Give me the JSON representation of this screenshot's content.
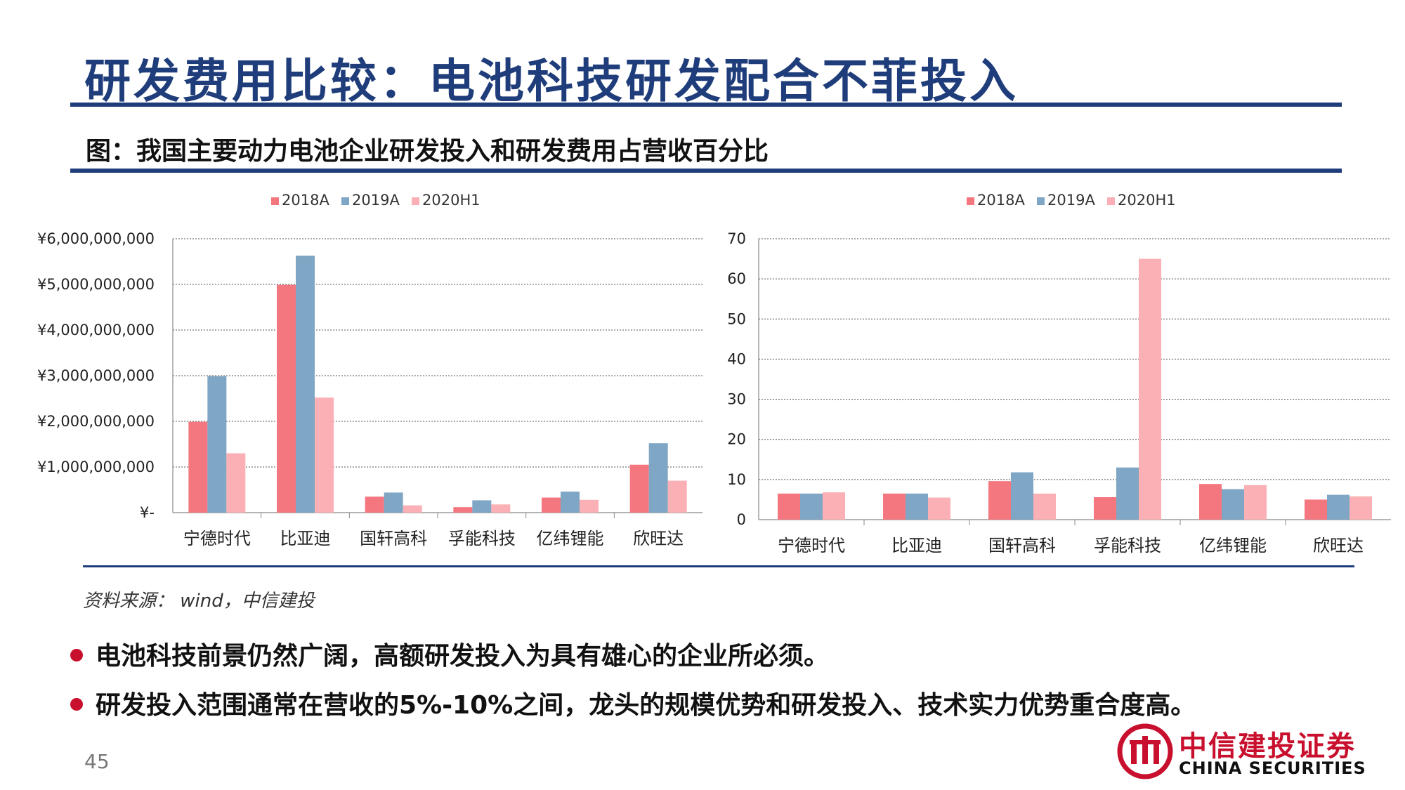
{
  "title": "研发费用比较：电池科技研发配合不菲投入",
  "figure_caption": "图：我国主要动力电池企业研发投入和研发费用占营收百分比",
  "source": "资料来源： wind，中信建投",
  "bullets": [
    "电池科技前景仍然广阔，高额研发投入为具有雄心的企业所必须。",
    "研发投入范围通常在营收的5%-10%之间，龙头的规模优势和研发投入、技术实力优势重合度高。"
  ],
  "page_number": "45",
  "logo": {
    "cn": "中信建投证券",
    "en": "CHINA SECURITIES"
  },
  "colors": {
    "s2018": "#f4777f",
    "s2019": "#7fa6c4",
    "s2020": "#fab0b4",
    "title": "#1f3d7a",
    "brand": "#c8102e"
  },
  "chart_data": [
    {
      "type": "bar",
      "categories": [
        "宁德时代",
        "比亚迪",
        "国轩高科",
        "孚能科技",
        "亿纬锂能",
        "欣旺达"
      ],
      "series": [
        {
          "name": "2018A",
          "values": [
            1990000000,
            4990000000,
            350000000,
            120000000,
            330000000,
            1050000000
          ]
        },
        {
          "name": "2019A",
          "values": [
            2990000000,
            5630000000,
            440000000,
            270000000,
            460000000,
            1520000000
          ]
        },
        {
          "name": "2020H1",
          "values": [
            1300000000,
            2520000000,
            160000000,
            180000000,
            280000000,
            700000000
          ]
        }
      ],
      "ylim": [
        0,
        6000000000
      ],
      "yticks": [
        0,
        1000000000,
        2000000000,
        3000000000,
        4000000000,
        5000000000,
        6000000000
      ],
      "ytick_labels": [
        "¥-",
        "¥1,000,000,000",
        "¥2,000,000,000",
        "¥3,000,000,000",
        "¥4,000,000,000",
        "¥5,000,000,000",
        "¥6,000,000,000"
      ],
      "legend": "top-center",
      "grid": true
    },
    {
      "type": "bar",
      "categories": [
        "宁德时代",
        "比亚迪",
        "国轩高科",
        "孚能科技",
        "亿纬锂能",
        "欣旺达"
      ],
      "series": [
        {
          "name": "2018A",
          "values": [
            6.5,
            6.5,
            9.6,
            5.6,
            8.9,
            5.0
          ]
        },
        {
          "name": "2019A",
          "values": [
            6.5,
            6.5,
            11.8,
            13.0,
            7.6,
            6.2
          ]
        },
        {
          "name": "2020H1",
          "values": [
            6.8,
            5.5,
            6.5,
            65.0,
            8.6,
            5.8
          ]
        }
      ],
      "ylim": [
        0,
        70
      ],
      "yticks": [
        0,
        10,
        20,
        30,
        40,
        50,
        60,
        70
      ],
      "ytick_labels": [
        "0",
        "10",
        "20",
        "30",
        "40",
        "50",
        "60",
        "70"
      ],
      "legend": "top-center",
      "grid": true
    }
  ]
}
